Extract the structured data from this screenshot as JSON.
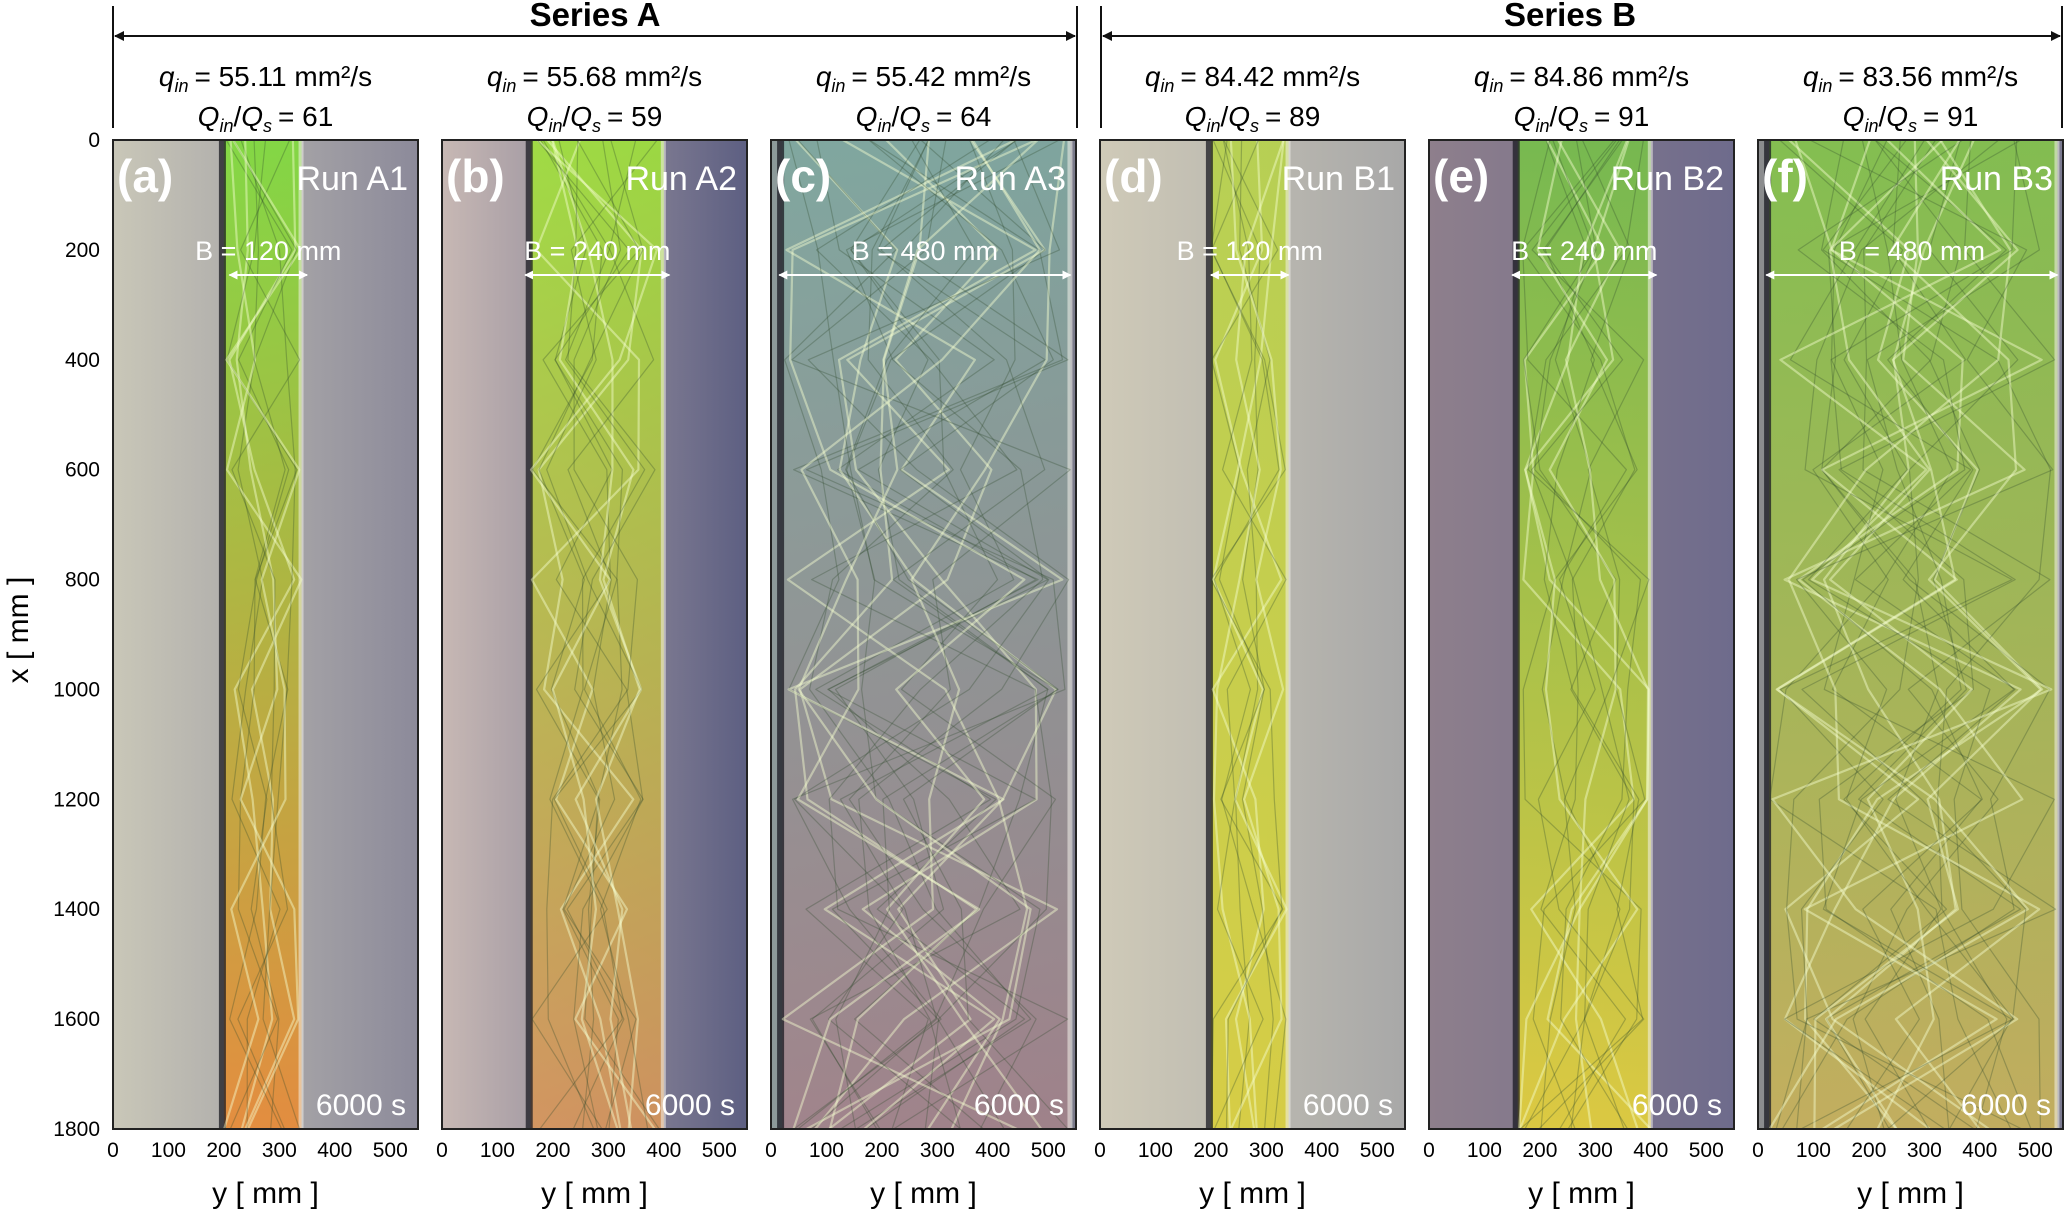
{
  "series": [
    {
      "name": "Series A"
    },
    {
      "name": "Series B"
    }
  ],
  "y_axis_label": "x [ mm ]",
  "x_axis_label": "y [ mm ]",
  "x_ticks": [
    "0",
    "100",
    "200",
    "300",
    "400",
    "500"
  ],
  "y_ticks": [
    "0",
    "200",
    "400",
    "600",
    "800",
    "1000",
    "1200",
    "1400",
    "1600",
    "1800"
  ],
  "panels": [
    {
      "letter": "(a)",
      "run": "Run A1",
      "q_value": "= 55.11 mm²/s",
      "ratio_value": "= 61",
      "width": "B = 120 mm",
      "time": "6000 s",
      "palette": {
        "left": "#c9c7b8",
        "channel_top": "#7fdc3a",
        "channel_bottom": "#e98a34",
        "right": "#8c8a9a"
      }
    },
    {
      "letter": "(b)",
      "run": "Run A2",
      "q_value": "= 55.68 mm²/s",
      "ratio_value": "= 59",
      "width": "B = 240 mm",
      "time": "6000 s",
      "palette": {
        "left": "#c7b8b4",
        "channel_top": "#9fe23a",
        "channel_bottom": "#d7945a",
        "right": "#5d5f82"
      }
    },
    {
      "letter": "(c)",
      "run": "Run A3",
      "q_value": "= 55.42 mm²/s",
      "ratio_value": "= 64",
      "width": "B = 480 mm",
      "time": "6000 s",
      "palette": {
        "left": "#8d9a9a",
        "channel_top": "#7fa9a0",
        "channel_bottom": "#a3828a",
        "right": "#7a7a8a"
      }
    },
    {
      "letter": "(d)",
      "run": "Run B1",
      "q_value": "= 84.42 mm²/s",
      "ratio_value": "= 89",
      "width": "B = 120 mm",
      "time": "6000 s",
      "palette": {
        "left": "#cfcab8",
        "channel_top": "#b6d24a",
        "channel_bottom": "#d9cf3a",
        "right": "#a8a8a8"
      }
    },
    {
      "letter": "(e)",
      "run": "Run B2",
      "q_value": "= 84.86 mm²/s",
      "ratio_value": "= 91",
      "width": "B = 240 mm",
      "time": "6000 s",
      "palette": {
        "left": "#8e7f8c",
        "channel_top": "#76c04a",
        "channel_bottom": "#e6d23a",
        "right": "#6e6b8c"
      }
    },
    {
      "letter": "(f)",
      "run": "Run B3",
      "q_value": "= 83.56 mm²/s",
      "ratio_value": "= 91",
      "width": "B = 480 mm",
      "time": "6000 s",
      "palette": {
        "left": "#8b8c8e",
        "channel_top": "#83c44a",
        "channel_bottom": "#c9b25a",
        "right": "#7b7a90"
      }
    }
  ],
  "q_symbol": "q",
  "q_subscript": "in",
  "ratio_numerator": "Q",
  "ratio_numerator_sub": "in",
  "ratio_denominator": "Q",
  "ratio_denominator_sub": "s"
}
